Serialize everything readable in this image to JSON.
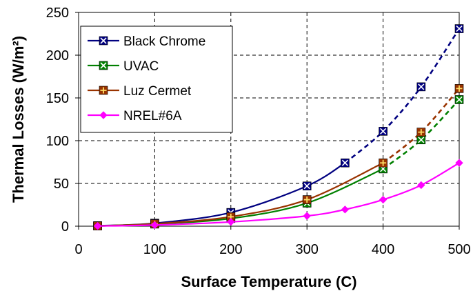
{
  "chart_data": {
    "type": "line",
    "xlabel": "Surface Temperature (C)",
    "ylabel": "Thermal Losses (W/m²)",
    "xlim": [
      0,
      500
    ],
    "ylim": [
      0,
      250
    ],
    "xticks": [
      0,
      100,
      200,
      300,
      400,
      500
    ],
    "yticks": [
      0,
      50,
      100,
      150,
      200,
      250
    ],
    "grid": "dashed",
    "legend_position": "top-left",
    "series": [
      {
        "name": "Black Chrome",
        "color": "#000080",
        "marker": "box-x",
        "x": [
          25,
          100,
          200,
          300,
          350,
          400,
          450,
          500
        ],
        "y": [
          0.5,
          3.5,
          16,
          47,
          74,
          111,
          163,
          231
        ],
        "dashed_from_x": 350
      },
      {
        "name": "UVAC",
        "color": "#008000",
        "marker": "box-x",
        "x": [
          25,
          100,
          200,
          300,
          400,
          450,
          500
        ],
        "y": [
          0.3,
          2.5,
          9,
          27,
          67,
          101,
          148
        ],
        "dashed_from_x": 400
      },
      {
        "name": "Luz Cermet",
        "color": "#993300",
        "marker": "box-plus",
        "x": [
          25,
          100,
          200,
          300,
          400,
          450,
          500
        ],
        "y": [
          0.3,
          2.8,
          11,
          31,
          74,
          110,
          161
        ],
        "dashed_from_x": 400
      },
      {
        "name": "NREL#6A",
        "color": "#FF00FF",
        "marker": "diamond",
        "x": [
          25,
          100,
          200,
          300,
          350,
          400,
          450,
          500
        ],
        "y": [
          0.2,
          1.3,
          5,
          12,
          19.5,
          31,
          48,
          74
        ],
        "dashed_from_x": null
      }
    ]
  }
}
